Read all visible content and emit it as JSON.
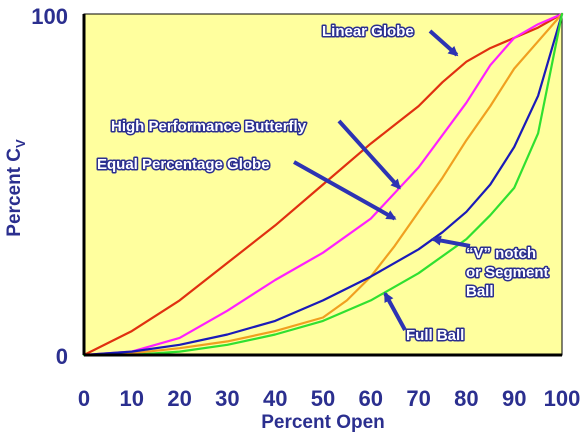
{
  "chart_data": {
    "type": "line",
    "ylabel_main": "Percent C",
    "ylabel_sub": "V",
    "xlabel": "Percent Open",
    "xlim": [
      0,
      100
    ],
    "ylim": [
      0,
      100
    ],
    "x_ticks": [
      "0",
      "10",
      "20",
      "30",
      "40",
      "50",
      "60",
      "70",
      "80",
      "90",
      "100"
    ],
    "y_ticks": [
      "0",
      "100"
    ],
    "background": "#ffff9e",
    "arrow_color": "#2d33b3",
    "series": [
      {
        "name": "Linear Globe",
        "color": "#e03010",
        "x": [
          0,
          10,
          20,
          30,
          40,
          50,
          60,
          70,
          75,
          80,
          85,
          90,
          95,
          100
        ],
        "y": [
          0,
          7,
          16,
          27,
          38,
          50,
          62,
          73,
          80,
          86,
          90,
          93,
          96,
          100
        ]
      },
      {
        "name": "High Performance Butterfly",
        "color": "#ff20ff",
        "x": [
          0,
          10,
          20,
          30,
          40,
          50,
          60,
          70,
          80,
          85,
          90,
          95,
          100
        ],
        "y": [
          0,
          1,
          5,
          13,
          22,
          30,
          40,
          55,
          74,
          85,
          93,
          97,
          100
        ]
      },
      {
        "name": "Equal Percentage Globe",
        "color": "#f0a020",
        "x": [
          0,
          10,
          20,
          30,
          40,
          50,
          55,
          60,
          65,
          70,
          75,
          80,
          85,
          90,
          95,
          100
        ],
        "y": [
          0,
          0.5,
          2,
          4,
          7,
          11,
          16,
          23,
          32,
          42,
          52,
          63,
          73,
          84,
          92,
          100
        ]
      },
      {
        "name": "“V” notch or Segment Ball",
        "color": "#1a1ab8",
        "x": [
          0,
          10,
          20,
          30,
          40,
          50,
          60,
          70,
          75,
          80,
          85,
          90,
          95,
          100
        ],
        "y": [
          0,
          1,
          3,
          6,
          10,
          16,
          23,
          31,
          36,
          42,
          50,
          61,
          76,
          100
        ]
      },
      {
        "name": "Full Ball",
        "color": "#30e030",
        "x": [
          0,
          10,
          20,
          30,
          40,
          50,
          60,
          70,
          80,
          85,
          90,
          95,
          100
        ],
        "y": [
          0,
          0,
          1,
          3,
          6,
          10,
          16,
          24,
          34,
          41,
          49,
          65,
          100
        ]
      }
    ],
    "annotations": [
      {
        "text": "Linear Globe",
        "series": 0
      },
      {
        "text": "High Performance Butterfly",
        "series": 1
      },
      {
        "text": "Equal Percentage Globe",
        "series": 2
      },
      {
        "lines": [
          "“V” notch",
          "or Segment",
          "Ball"
        ],
        "series": 3
      },
      {
        "text": "Full Ball",
        "series": 4
      }
    ]
  }
}
